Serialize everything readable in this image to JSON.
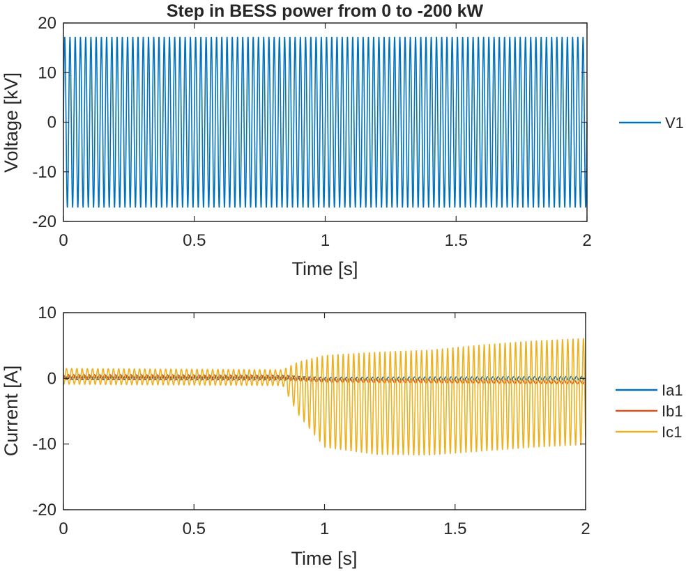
{
  "chart_data": [
    {
      "type": "line",
      "title": "Step in BESS power from 0 to -200 kW",
      "xlabel": "Time [s]",
      "ylabel": "Voltage [kV]",
      "xlim": [
        0,
        2
      ],
      "ylim": [
        -20,
        20
      ],
      "xticks": [
        0,
        0.5,
        1,
        1.5,
        2
      ],
      "xtick_labels": [
        "0",
        "0.5",
        "1",
        "1.5",
        "2"
      ],
      "yticks": [
        -20,
        -10,
        0,
        10,
        20
      ],
      "ytick_labels": [
        "-20",
        "-10",
        "0",
        "10",
        "20"
      ],
      "grid": false,
      "legend_placement": "outside-right",
      "frequency_hz": 50,
      "series": [
        {
          "name": "V1",
          "color": "#0072BD",
          "waveform": "sinusoid",
          "envelope": [
            {
              "t": 0,
              "amp": 17.2,
              "offset": 0
            },
            {
              "t": 2,
              "amp": 17.2,
              "offset": 0
            }
          ]
        }
      ]
    },
    {
      "type": "line",
      "title": "",
      "xlabel": "Time [s]",
      "ylabel": "Current [A]",
      "xlim": [
        0,
        2
      ],
      "ylim": [
        -20,
        10
      ],
      "xticks": [
        0,
        0.5,
        1,
        1.5,
        2
      ],
      "xtick_labels": [
        "0",
        "0.5",
        "1",
        "1.5",
        "2"
      ],
      "yticks": [
        -20,
        -10,
        0,
        10
      ],
      "ytick_labels": [
        "-20",
        "-10",
        "0",
        "10"
      ],
      "grid": false,
      "legend_placement": "outside-right",
      "frequency_hz": 50,
      "step_time": 0.84,
      "series": [
        {
          "name": "Ia1",
          "color": "#0072BD",
          "waveform": "sinusoid",
          "envelope": [
            {
              "t": 0,
              "amp": 0.3,
              "offset": 0.1
            },
            {
              "t": 0.84,
              "amp": 0.3,
              "offset": 0.1
            },
            {
              "t": 1.0,
              "amp": 0.25,
              "offset": -0.1
            },
            {
              "t": 2,
              "amp": 0.3,
              "offset": 0
            }
          ]
        },
        {
          "name": "Ib1",
          "color": "#D95319",
          "waveform": "sinusoid",
          "envelope": [
            {
              "t": 0,
              "amp": 0.4,
              "offset": 0.2
            },
            {
              "t": 0.84,
              "amp": 0.4,
              "offset": 0.1
            },
            {
              "t": 1.0,
              "amp": 0.3,
              "offset": -0.3
            },
            {
              "t": 2,
              "amp": 0.25,
              "offset": -0.6
            }
          ]
        },
        {
          "name": "Ic1",
          "color": "#EDB120",
          "waveform": "sinusoid",
          "envelope": [
            {
              "t": 0,
              "amp": 1.2,
              "offset": 0.3
            },
            {
              "t": 0.84,
              "amp": 1.2,
              "offset": 0.1
            },
            {
              "t": 0.9,
              "amp": 4.0,
              "offset": -1.5
            },
            {
              "t": 1.0,
              "amp": 7.0,
              "offset": -3.5
            },
            {
              "t": 1.2,
              "amp": 7.8,
              "offset": -3.8
            },
            {
              "t": 1.4,
              "amp": 8.0,
              "offset": -3.7
            },
            {
              "t": 1.6,
              "amp": 8.1,
              "offset": -3.0
            },
            {
              "t": 1.8,
              "amp": 8.1,
              "offset": -2.4
            },
            {
              "t": 2.0,
              "amp": 8.1,
              "offset": -2.0
            }
          ]
        }
      ]
    }
  ]
}
